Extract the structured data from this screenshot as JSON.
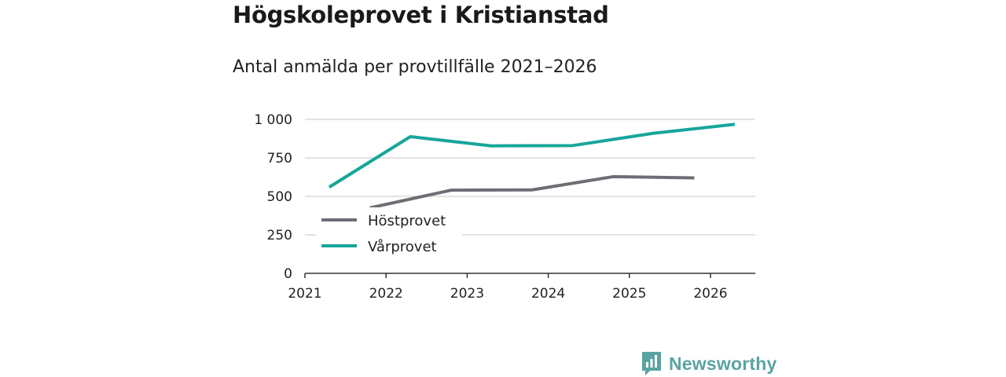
{
  "header": {
    "title": "Högskoleprovet i Kristianstad",
    "subtitle": "Antal anmälda per provtillfälle 2021–2026"
  },
  "brand": {
    "name": "Newsworthy",
    "icon": "newsworthy-logo-icon",
    "color": "#5aa3a1"
  },
  "chart_data": {
    "type": "line",
    "title": "Antal anmälda per provtillfälle 2021–2026",
    "xlabel": "",
    "ylabel": "",
    "xlim": [
      2021,
      2026.55
    ],
    "ylim": [
      0,
      1000
    ],
    "yticks": [
      0,
      250,
      500,
      750,
      1000
    ],
    "ytick_labels": [
      "0",
      "250",
      "500",
      "750",
      "1 000"
    ],
    "xticks": [
      2021,
      2022,
      2023,
      2024,
      2025,
      2026
    ],
    "xtick_labels": [
      "2021",
      "2022",
      "2023",
      "2024",
      "2025",
      "2026"
    ],
    "grid": true,
    "legend_position": "lower-left",
    "series": [
      {
        "name": "Höstprovet",
        "color": "#6e6d75",
        "x": [
          2021.8,
          2022.8,
          2023.8,
          2024.8,
          2025.8
        ],
        "values": [
          425,
          540,
          542,
          628,
          620
        ]
      },
      {
        "name": "Vårprovet",
        "color": "#16a69a",
        "x": [
          2021.3,
          2022.3,
          2023.3,
          2024.3,
          2025.3,
          2026.3
        ],
        "values": [
          560,
          888,
          828,
          830,
          910,
          968
        ]
      }
    ]
  }
}
